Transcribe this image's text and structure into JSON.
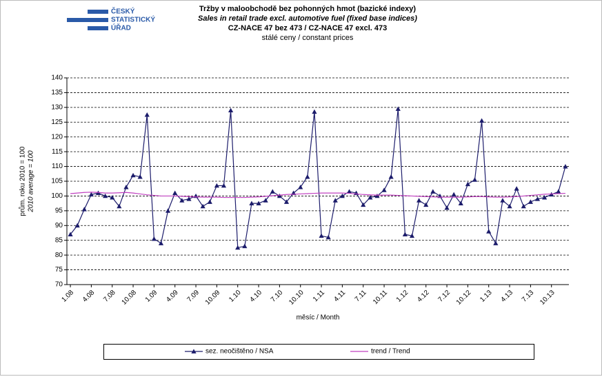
{
  "logo": [
    "ČESKÝ",
    "STATISTICKÝ",
    "ÚŘAD"
  ],
  "chart_data": {
    "type": "line",
    "title": [
      "Tržby v maloobchodě bez pohonných hmot (bazické indexy)",
      "Sales in retail trade excl. automotive fuel (fixed base indices)",
      "CZ-NACE 47 bez 473 / CZ-NACE 47 excl. 473",
      "stálé ceny / constant prices"
    ],
    "x_label": "měsíc / Month",
    "y_label": [
      "prům. roku 2010 = 100",
      "2010 average = 100"
    ],
    "categories": [
      "1.08",
      null,
      null,
      "4.08",
      null,
      null,
      "7.08",
      null,
      null,
      "10.08",
      null,
      null,
      "1.09",
      null,
      null,
      "4.09",
      null,
      null,
      "7.09",
      null,
      null,
      "10.09",
      null,
      null,
      "1.10",
      null,
      null,
      "4.10",
      null,
      null,
      "7.10",
      null,
      null,
      "10.10",
      null,
      null,
      "1.11",
      null,
      null,
      "4.11",
      null,
      null,
      "7.11",
      null,
      null,
      "10.11",
      null,
      null,
      "1.12",
      null,
      null,
      "4.12",
      null,
      null,
      "7.12",
      null,
      null,
      "10.12",
      null,
      null,
      "1.13",
      null,
      null,
      "4.13",
      null,
      null,
      "7.13",
      null,
      null,
      "10.13",
      null,
      null
    ],
    "series": [
      {
        "name": "sez. neočištěno / NSA",
        "color": "#1c1c6b",
        "marker": "triangle",
        "values": [
          87,
          90,
          95.5,
          100.5,
          101,
          100,
          99.5,
          96.5,
          103,
          107,
          106.5,
          127.5,
          85.5,
          84,
          95,
          101,
          98.5,
          99,
          100,
          96.5,
          98,
          103.5,
          103.5,
          129,
          82.5,
          83,
          97.5,
          97.5,
          98.5,
          101.5,
          100,
          98,
          101,
          103,
          106.5,
          128.5,
          86.5,
          86,
          98.5,
          100,
          101.5,
          101,
          97,
          99.5,
          100,
          102,
          106.5,
          129.5,
          87,
          86.5,
          98.5,
          97,
          101.5,
          100,
          96,
          100.5,
          97.5,
          104,
          105.5,
          125.5,
          88,
          84,
          98.5,
          96.5,
          102.5,
          96.5,
          98,
          99,
          99.5,
          100.5,
          101.5,
          110
        ]
      },
      {
        "name": "trend / Trend",
        "color": "#c040c0",
        "values": [
          100.8,
          101,
          101.2,
          101.3,
          101.2,
          101,
          101,
          101.1,
          101.2,
          101,
          100.7,
          100.4,
          100.2,
          100,
          100,
          100,
          99.9,
          99.8,
          99.7,
          99.6,
          99.6,
          99.6,
          99.5,
          99.5,
          99.5,
          99.5,
          99.6,
          99.7,
          99.9,
          100.1,
          100.3,
          100.5,
          100.6,
          100.7,
          100.8,
          100.9,
          101,
          101,
          101,
          101,
          100.9,
          100.7,
          100.5,
          100.4,
          100.3,
          100.3,
          100.3,
          100.2,
          100.1,
          100,
          99.9,
          99.8,
          99.7,
          99.6,
          99.6,
          99.6,
          99.6,
          99.7,
          99.8,
          99.8,
          99.7,
          99.6,
          99.6,
          99.7,
          99.8,
          100,
          100.2,
          100.4,
          100.6,
          100.7,
          100.8,
          100.9
        ]
      }
    ],
    "ylim": [
      70,
      140
    ],
    "yticks": [
      70,
      75,
      80,
      85,
      90,
      95,
      100,
      105,
      110,
      115,
      120,
      125,
      130,
      135,
      140
    ],
    "grid": true
  }
}
